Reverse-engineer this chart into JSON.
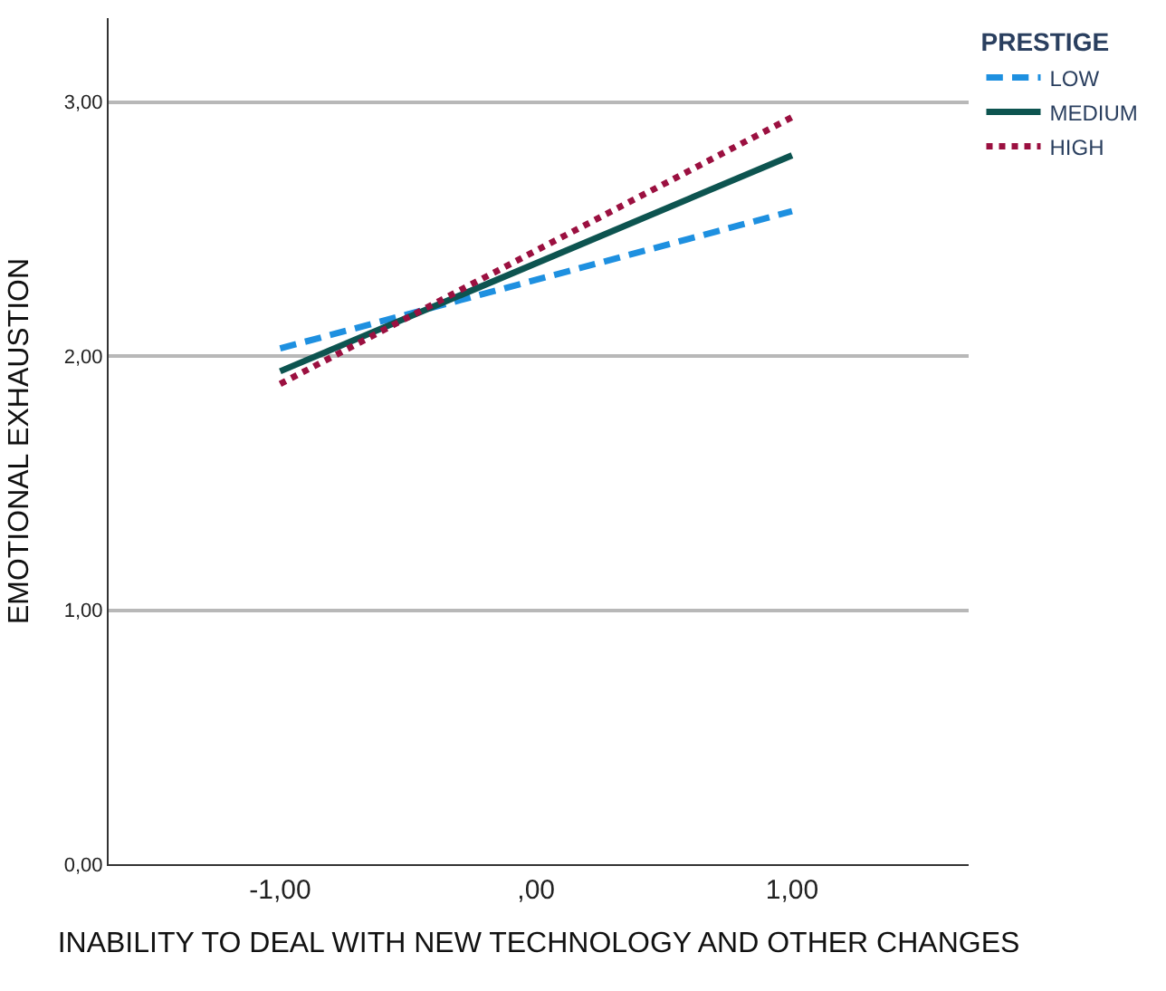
{
  "chart_data": {
    "type": "line",
    "xlabel": "INABILITY TO DEAL WITH NEW TECHNOLOGY AND OTHER CHANGES",
    "ylabel": "EMOTIONAL EXHAUSTION",
    "legend_title": "PRESTIGE",
    "x": [
      -1,
      1
    ],
    "series": [
      {
        "name": "LOW",
        "color": "#1e90e0",
        "values": [
          2.03,
          2.57
        ],
        "line_style": "dashed"
      },
      {
        "name": "MEDIUM",
        "color": "#0d5450",
        "values": [
          1.94,
          2.79
        ],
        "line_style": "solid"
      },
      {
        "name": "HIGH",
        "color": "#9b1040",
        "values": [
          1.89,
          2.94
        ],
        "line_style": "dotted"
      }
    ],
    "xlim": [
      -1.67,
      1.69
    ],
    "xticks": [
      {
        "value": -1,
        "label": "-1,00"
      },
      {
        "value": 0,
        "label": ",00"
      },
      {
        "value": 1,
        "label": "1,00"
      }
    ],
    "ylim": [
      0,
      3.33
    ],
    "yticks": [
      {
        "value": 0,
        "label": "0,00"
      },
      {
        "value": 1,
        "label": "1,00"
      },
      {
        "value": 2,
        "label": "2,00"
      },
      {
        "value": 3,
        "label": "3,00"
      }
    ],
    "grid": "y",
    "legend": "top right",
    "marker": "none"
  }
}
